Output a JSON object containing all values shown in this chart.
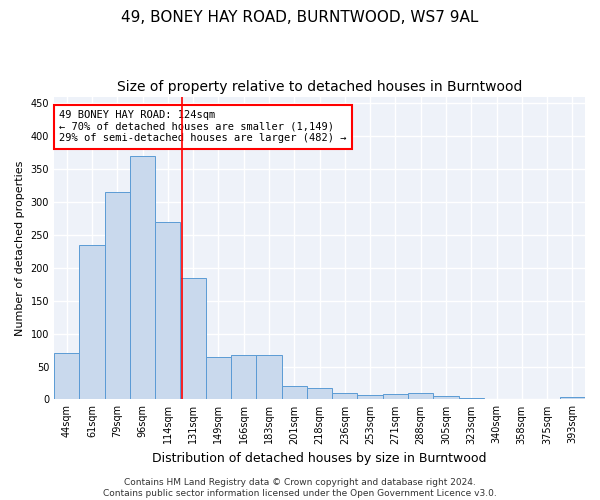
{
  "title": "49, BONEY HAY ROAD, BURNTWOOD, WS7 9AL",
  "subtitle": "Size of property relative to detached houses in Burntwood",
  "xlabel": "Distribution of detached houses by size in Burntwood",
  "ylabel": "Number of detached properties",
  "footer1": "Contains HM Land Registry data © Crown copyright and database right 2024.",
  "footer2": "Contains public sector information licensed under the Open Government Licence v3.0.",
  "categories": [
    "44sqm",
    "61sqm",
    "79sqm",
    "96sqm",
    "114sqm",
    "131sqm",
    "149sqm",
    "166sqm",
    "183sqm",
    "201sqm",
    "218sqm",
    "236sqm",
    "253sqm",
    "271sqm",
    "288sqm",
    "305sqm",
    "323sqm",
    "340sqm",
    "358sqm",
    "375sqm",
    "393sqm"
  ],
  "values": [
    70,
    235,
    315,
    370,
    270,
    185,
    65,
    67,
    68,
    20,
    18,
    10,
    7,
    9,
    10,
    5,
    2,
    0,
    0,
    0,
    3
  ],
  "bar_color": "#c9d9ed",
  "bar_edge_color": "#5b9bd5",
  "annotation_line1": "49 BONEY HAY ROAD: 124sqm",
  "annotation_line2": "← 70% of detached houses are smaller (1,149)",
  "annotation_line3": "29% of semi-detached houses are larger (482) →",
  "annotation_box_color": "white",
  "annotation_box_edge": "red",
  "vline_color": "red",
  "vline_position": 4.58,
  "ylim": [
    0,
    460
  ],
  "yticks": [
    0,
    50,
    100,
    150,
    200,
    250,
    300,
    350,
    400,
    450
  ],
  "background_color": "#eef2f9",
  "grid_color": "white",
  "title_fontsize": 11,
  "subtitle_fontsize": 10,
  "xlabel_fontsize": 9,
  "ylabel_fontsize": 8,
  "tick_fontsize": 7,
  "annot_fontsize": 7.5,
  "footer_fontsize": 6.5
}
